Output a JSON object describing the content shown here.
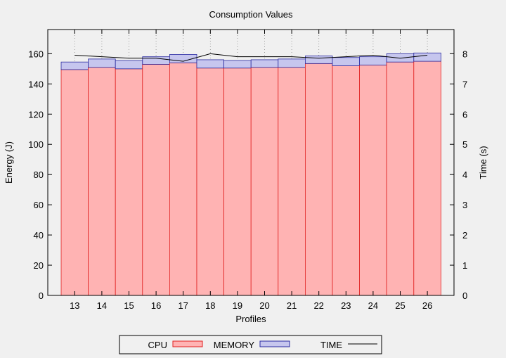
{
  "chart_data": {
    "type": "bar",
    "title": "Consumption Values",
    "xlabel": "Profiles",
    "ylabel": "Energy (J)",
    "y2label": "Time (s)",
    "categories": [
      "13",
      "14",
      "15",
      "16",
      "17",
      "18",
      "19",
      "20",
      "21",
      "22",
      "23",
      "24",
      "25",
      "26"
    ],
    "stacked": true,
    "ylim": [
      0,
      176
    ],
    "y2lim": [
      0,
      8.8
    ],
    "yticks": [
      0,
      20,
      40,
      60,
      80,
      100,
      120,
      140,
      160
    ],
    "y2ticks": [
      0,
      1,
      2,
      3,
      4,
      5,
      6,
      7,
      8
    ],
    "grid": true,
    "legend_position": "bottom",
    "series": [
      {
        "name": "CPU",
        "axis": "left",
        "values": [
          149.5,
          151.0,
          150.0,
          153.0,
          154.0,
          150.5,
          150.5,
          151.0,
          151.0,
          153.5,
          152.0,
          152.5,
          154.5,
          155.0
        ],
        "fill": "#ffb3b3",
        "stroke": "#e02020"
      },
      {
        "name": "MEMORY",
        "axis": "left",
        "values": [
          5.0,
          5.5,
          5.5,
          5.0,
          5.5,
          5.5,
          5.0,
          5.0,
          5.5,
          5.0,
          5.5,
          5.5,
          5.5,
          5.5
        ],
        "fill": "#c6c6ee",
        "stroke": "#2a2aa0"
      },
      {
        "name": "TIME",
        "axis": "right",
        "type": "line",
        "values": [
          7.95,
          7.9,
          7.85,
          7.85,
          7.75,
          8.0,
          7.9,
          7.9,
          7.9,
          7.85,
          7.9,
          7.95,
          7.85,
          7.95
        ],
        "stroke": "#000000"
      }
    ]
  }
}
